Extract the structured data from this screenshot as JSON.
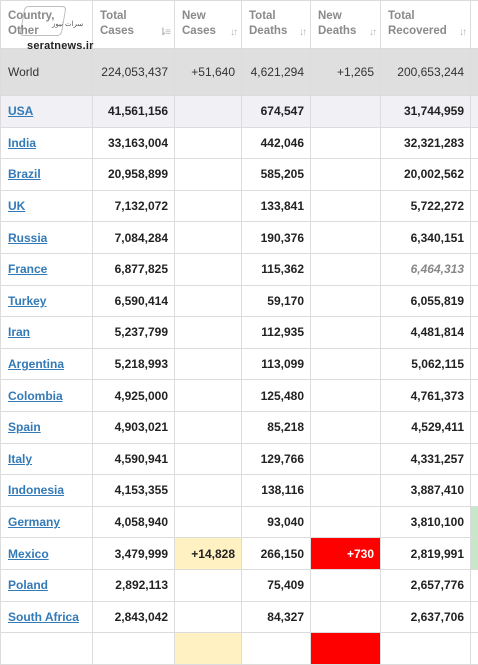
{
  "headers": [
    {
      "line1": "Country,",
      "line2": "Other",
      "sortable": true
    },
    {
      "line1": "Total",
      "line2": "Cases",
      "sortable": true
    },
    {
      "line1": "New",
      "line2": "Cases",
      "sortable": true
    },
    {
      "line1": "Total",
      "line2": "Deaths",
      "sortable": true
    },
    {
      "line1": "New",
      "line2": "Deaths",
      "sortable": true
    },
    {
      "line1": "Total",
      "line2": "Recovered",
      "sortable": true
    }
  ],
  "sort_icon": "sort-updown-icon",
  "world": {
    "country": "World",
    "total_cases": "224,053,437",
    "new_cases": "+51,640",
    "total_deaths": "4,621,294",
    "new_deaths": "+1,265",
    "total_recovered": "200,653,244"
  },
  "rows": [
    {
      "country": "USA",
      "total_cases": "41,561,156",
      "new_cases": "",
      "total_deaths": "674,547",
      "new_deaths": "",
      "total_recovered": "31,744,959"
    },
    {
      "country": "India",
      "total_cases": "33,163,004",
      "new_cases": "",
      "total_deaths": "442,046",
      "new_deaths": "",
      "total_recovered": "32,321,283"
    },
    {
      "country": "Brazil",
      "total_cases": "20,958,899",
      "new_cases": "",
      "total_deaths": "585,205",
      "new_deaths": "",
      "total_recovered": "20,002,562"
    },
    {
      "country": "UK",
      "total_cases": "7,132,072",
      "new_cases": "",
      "total_deaths": "133,841",
      "new_deaths": "",
      "total_recovered": "5,722,272"
    },
    {
      "country": "Russia",
      "total_cases": "7,084,284",
      "new_cases": "",
      "total_deaths": "190,376",
      "new_deaths": "",
      "total_recovered": "6,340,151"
    },
    {
      "country": "France",
      "total_cases": "6,877,825",
      "new_cases": "",
      "total_deaths": "115,362",
      "new_deaths": "",
      "total_recovered": "6,464,313"
    },
    {
      "country": "Turkey",
      "total_cases": "6,590,414",
      "new_cases": "",
      "total_deaths": "59,170",
      "new_deaths": "",
      "total_recovered": "6,055,819"
    },
    {
      "country": "Iran",
      "total_cases": "5,237,799",
      "new_cases": "",
      "total_deaths": "112,935",
      "new_deaths": "",
      "total_recovered": "4,481,814"
    },
    {
      "country": "Argentina",
      "total_cases": "5,218,993",
      "new_cases": "",
      "total_deaths": "113,099",
      "new_deaths": "",
      "total_recovered": "5,062,115"
    },
    {
      "country": "Colombia",
      "total_cases": "4,925,000",
      "new_cases": "",
      "total_deaths": "125,480",
      "new_deaths": "",
      "total_recovered": "4,761,373"
    },
    {
      "country": "Spain",
      "total_cases": "4,903,021",
      "new_cases": "",
      "total_deaths": "85,218",
      "new_deaths": "",
      "total_recovered": "4,529,411"
    },
    {
      "country": "Italy",
      "total_cases": "4,590,941",
      "new_cases": "",
      "total_deaths": "129,766",
      "new_deaths": "",
      "total_recovered": "4,331,257"
    },
    {
      "country": "Indonesia",
      "total_cases": "4,153,355",
      "new_cases": "",
      "total_deaths": "138,116",
      "new_deaths": "",
      "total_recovered": "3,887,410"
    },
    {
      "country": "Germany",
      "total_cases": "4,058,940",
      "new_cases": "",
      "total_deaths": "93,040",
      "new_deaths": "",
      "total_recovered": "3,810,100"
    },
    {
      "country": "Mexico",
      "total_cases": "3,479,999",
      "new_cases": "+14,828",
      "total_deaths": "266,150",
      "new_deaths": "+730",
      "total_recovered": "2,819,991"
    },
    {
      "country": "Poland",
      "total_cases": "2,892,113",
      "new_cases": "",
      "total_deaths": "75,409",
      "new_deaths": "",
      "total_recovered": "2,657,776"
    },
    {
      "country": "South Africa",
      "total_cases": "2,843,042",
      "new_cases": "",
      "total_deaths": "84,327",
      "new_deaths": "",
      "total_recovered": "2,637,706"
    }
  ],
  "watermark": {
    "site": "seratnews.ir",
    "tagline": "سرات نیوز"
  },
  "colors": {
    "link": "#337ab7",
    "new_cases_highlight": "#fff1c1",
    "new_deaths_highlight": "#ff0000",
    "world_row_bg": "#dfdfdf",
    "usa_row_bg": "#f0f0f5"
  }
}
